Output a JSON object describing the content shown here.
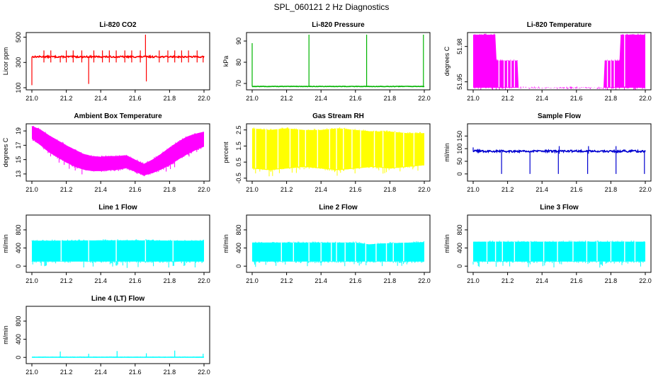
{
  "figure_title": "SPL_060121  2 Hz Diagnostics",
  "chart_data": [
    {
      "type": "line",
      "title": "Li-820 CO2",
      "ylabel": "Licor ppm",
      "xlabel": "",
      "color": "#ff0000",
      "xlim": [
        21.0,
        22.0
      ],
      "ylim": [
        100,
        520
      ],
      "xticks": [
        21.0,
        21.2,
        21.4,
        21.6,
        21.8,
        22.0
      ],
      "xtick_labels": [
        "21.0",
        "21.2",
        "21.4",
        "21.6",
        "21.8",
        "22.0"
      ],
      "yticks": [
        100,
        300,
        500
      ],
      "ytick_labels": [
        "100",
        "300",
        "500"
      ],
      "style": "trace",
      "baseline": 345,
      "noise": 6,
      "spike_high": 395,
      "spike_low": 300,
      "spikes_up": [
        21.07,
        21.11,
        21.2,
        21.24,
        21.29,
        21.36,
        21.41,
        21.45,
        21.49,
        21.54,
        21.58,
        21.63,
        21.74,
        21.79,
        21.83,
        21.87,
        21.91,
        21.96
      ],
      "extremes": [
        {
          "x": 21.0,
          "value": 120
        },
        {
          "x": 21.165,
          "value": 300
        },
        {
          "x": 21.33,
          "value": 130
        },
        {
          "x": 21.66,
          "value": 520
        },
        {
          "x": 21.665,
          "value": 150
        },
        {
          "x": 21.995,
          "value": 300
        }
      ]
    },
    {
      "type": "line",
      "title": "Li-820 Pressure",
      "ylabel": "kPa",
      "xlabel": "",
      "color": "#00b400",
      "xlim": [
        21.0,
        22.0
      ],
      "ylim": [
        68,
        93
      ],
      "xticks": [
        21.0,
        21.2,
        21.4,
        21.6,
        21.8,
        22.0
      ],
      "xtick_labels": [
        "21.0",
        "21.2",
        "21.4",
        "21.6",
        "21.8",
        "22.0"
      ],
      "yticks": [
        70,
        80,
        90
      ],
      "ytick_labels": [
        "70",
        "80",
        "90"
      ],
      "style": "trace",
      "baseline": 68.6,
      "noise": 0.1,
      "spike_high": 69,
      "spike_low": 68.5,
      "spikes_up": [],
      "extremes": [
        {
          "x": 21.0,
          "value": 89
        },
        {
          "x": 21.33,
          "value": 93
        },
        {
          "x": 21.665,
          "value": 93
        },
        {
          "x": 21.995,
          "value": 93
        }
      ]
    },
    {
      "type": "band",
      "title": "Li-820 Temperature",
      "ylabel": "degrees C",
      "xlabel": "",
      "color": "#ff00ff",
      "xlim": [
        21.0,
        22.0
      ],
      "ylim": [
        51.945,
        51.99
      ],
      "xticks": [
        21.0,
        21.2,
        21.4,
        21.6,
        21.8,
        22.0
      ],
      "xtick_labels": [
        "21.0",
        "21.2",
        "21.4",
        "21.6",
        "21.8",
        "22.0"
      ],
      "yticks": [
        51.95,
        51.98
      ],
      "ytick_labels": [
        "51.95",
        "51.98"
      ],
      "x": [
        21.0,
        21.13,
        21.13,
        21.26,
        21.26,
        21.76,
        21.76,
        21.85,
        21.85,
        22.0
      ],
      "low": [
        51.945,
        51.945,
        51.945,
        51.945,
        51.945,
        51.945,
        51.945,
        51.945,
        51.945,
        51.945
      ],
      "high": [
        51.99,
        51.99,
        51.968,
        51.968,
        51.945,
        51.945,
        51.968,
        51.968,
        51.99,
        51.99
      ],
      "bars": [
        21.15,
        21.18,
        21.2,
        21.22,
        21.24,
        21.78,
        21.8,
        21.82,
        21.88
      ]
    },
    {
      "type": "band",
      "title": "Ambient Box Temperature",
      "ylabel": "degrees C",
      "xlabel": "",
      "color": "#ff00ff",
      "xlim": [
        21.0,
        22.0
      ],
      "ylim": [
        12.3,
        19.7
      ],
      "xticks": [
        21.0,
        21.2,
        21.4,
        21.6,
        21.8,
        22.0
      ],
      "xtick_labels": [
        "21.0",
        "21.2",
        "21.4",
        "21.6",
        "21.8",
        "22.0"
      ],
      "yticks": [
        13,
        15,
        17,
        19
      ],
      "ytick_labels": [
        "13",
        "15",
        "17",
        "19"
      ],
      "x": [
        21.0,
        21.05,
        21.1,
        21.15,
        21.2,
        21.25,
        21.3,
        21.35,
        21.4,
        21.45,
        21.5,
        21.55,
        21.6,
        21.65,
        21.7,
        21.75,
        21.8,
        21.85,
        21.9,
        21.95,
        22.0
      ],
      "low": [
        17.9,
        17.0,
        16.0,
        15.3,
        14.6,
        14.0,
        13.6,
        13.4,
        13.4,
        13.5,
        13.6,
        13.8,
        13.3,
        12.8,
        13.1,
        13.6,
        14.2,
        15.0,
        15.7,
        16.3,
        16.8
      ],
      "high": [
        19.7,
        19.2,
        18.4,
        17.7,
        17.0,
        16.4,
        15.8,
        15.5,
        15.4,
        15.5,
        15.5,
        15.6,
        15.0,
        14.4,
        15.0,
        15.8,
        16.7,
        17.5,
        18.2,
        18.6,
        18.9
      ],
      "bars": []
    },
    {
      "type": "band",
      "title": "Gas Stream RH",
      "ylabel": "percent",
      "xlabel": "",
      "color": "#ffff00",
      "xlim": [
        21.0,
        22.0
      ],
      "ylim": [
        -0.55,
        2.75
      ],
      "xticks": [
        21.0,
        21.2,
        21.4,
        21.6,
        21.8,
        22.0
      ],
      "xtick_labels": [
        "21.0",
        "21.2",
        "21.4",
        "21.6",
        "21.8",
        "22.0"
      ],
      "yticks": [
        -0.5,
        0.5,
        1.5,
        2.5
      ],
      "ytick_labels": [
        "-0.5",
        "0.5",
        "1.5",
        "2.5"
      ],
      "x": [
        21.0,
        21.1,
        21.2,
        21.3,
        21.4,
        21.5,
        21.6,
        21.7,
        21.8,
        21.9,
        22.0
      ],
      "low": [
        0.1,
        0.0,
        0.1,
        0.2,
        0.1,
        0.0,
        0.1,
        0.2,
        0.1,
        0.2,
        0.3
      ],
      "high": [
        2.6,
        2.5,
        2.6,
        2.5,
        2.5,
        2.6,
        2.5,
        2.4,
        2.4,
        2.3,
        2.3
      ],
      "bars": [
        21.02,
        21.08,
        21.15,
        21.22,
        21.27,
        21.31,
        21.38,
        21.45,
        21.49,
        21.53,
        21.58,
        21.63,
        21.71,
        21.76,
        21.83,
        21.88,
        21.94
      ]
    },
    {
      "type": "line",
      "title": "Sample Flow",
      "ylabel": "ml/min",
      "xlabel": "",
      "color": "#0000d0",
      "xlim": [
        21.0,
        22.0
      ],
      "ylim": [
        -20,
        190
      ],
      "xticks": [
        21.0,
        21.2,
        21.4,
        21.6,
        21.8,
        22.0
      ],
      "xtick_labels": [
        "21.0",
        "21.2",
        "21.4",
        "21.6",
        "21.8",
        "22.0"
      ],
      "yticks": [
        0,
        50,
        100,
        150
      ],
      "ytick_labels": [
        "0",
        "50",
        "100",
        "150"
      ],
      "style": "trace",
      "baseline": 90,
      "noise": 4,
      "spike_high": 110,
      "spike_low": 80,
      "spikes_up": [
        21.5,
        21.67,
        21.83
      ],
      "extremes": [
        {
          "x": 21.0,
          "value": 105
        },
        {
          "x": 21.165,
          "value": 0
        },
        {
          "x": 21.33,
          "value": 0
        },
        {
          "x": 21.495,
          "value": 0
        },
        {
          "x": 21.665,
          "value": 0
        },
        {
          "x": 21.83,
          "value": 0
        },
        {
          "x": 21.995,
          "value": 0
        }
      ]
    },
    {
      "type": "band",
      "title": "Line 1 Flow",
      "ylabel": "ml/min",
      "xlabel": "",
      "color": "#00ffff",
      "xlim": [
        21.0,
        22.0
      ],
      "ylim": [
        -90,
        1080
      ],
      "xticks": [
        21.0,
        21.2,
        21.4,
        21.6,
        21.8,
        22.0
      ],
      "xtick_labels": [
        "21.0",
        "21.2",
        "21.4",
        "21.6",
        "21.8",
        "22.0"
      ],
      "yticks": [
        0,
        400,
        800
      ],
      "ytick_labels": [
        "0",
        "400",
        "800"
      ],
      "x": [
        21.0,
        21.5,
        22.0
      ],
      "low": [
        100,
        100,
        100
      ],
      "high": [
        560,
        570,
        560
      ],
      "bars": [
        21.17,
        21.33,
        21.49,
        21.66,
        21.82
      ]
    },
    {
      "type": "band",
      "title": "Line 2 Flow",
      "ylabel": "ml/min",
      "xlabel": "",
      "color": "#00ffff",
      "xlim": [
        21.0,
        22.0
      ],
      "ylim": [
        -90,
        1080
      ],
      "xticks": [
        21.0,
        21.2,
        21.4,
        21.6,
        21.8,
        22.0
      ],
      "xtick_labels": [
        "21.0",
        "21.2",
        "21.4",
        "21.6",
        "21.8",
        "22.0"
      ],
      "yticks": [
        0,
        400,
        800
      ],
      "ytick_labels": [
        "0",
        "400",
        "800"
      ],
      "x": [
        21.0,
        21.6,
        21.68,
        21.75,
        22.0
      ],
      "low": [
        100,
        100,
        100,
        100,
        100
      ],
      "high": [
        520,
        520,
        480,
        500,
        530
      ],
      "bars": [
        21.17,
        21.24,
        21.33,
        21.4,
        21.46,
        21.49,
        21.54,
        21.6,
        21.66,
        21.72,
        21.78,
        21.82,
        21.88
      ]
    },
    {
      "type": "band",
      "title": "Line 3 Flow",
      "ylabel": "ml/min",
      "xlabel": "",
      "color": "#00ffff",
      "xlim": [
        21.0,
        22.0
      ],
      "ylim": [
        -90,
        1080
      ],
      "xticks": [
        21.0,
        21.2,
        21.4,
        21.6,
        21.8,
        22.0
      ],
      "xtick_labels": [
        "21.0",
        "21.2",
        "21.4",
        "21.6",
        "21.8",
        "22.0"
      ],
      "yticks": [
        0,
        400,
        800
      ],
      "ytick_labels": [
        "0",
        "400",
        "800"
      ],
      "x": [
        21.0,
        21.5,
        22.0
      ],
      "low": [
        100,
        100,
        100
      ],
      "high": [
        540,
        540,
        540
      ],
      "bars": [
        21.08,
        21.13,
        21.17,
        21.24,
        21.33,
        21.41,
        21.49,
        21.58,
        21.66,
        21.72,
        21.8,
        21.88,
        21.94
      ]
    },
    {
      "type": "line",
      "title": "Line 4 (LT) Flow",
      "ylabel": "ml/min",
      "xlabel": "",
      "color": "#00ffff",
      "xlim": [
        21.0,
        22.0
      ],
      "ylim": [
        -90,
        1080
      ],
      "xticks": [
        21.0,
        21.2,
        21.4,
        21.6,
        21.8,
        22.0
      ],
      "xtick_labels": [
        "21.0",
        "21.2",
        "21.4",
        "21.6",
        "21.8",
        "22.0"
      ],
      "yticks": [
        0,
        400,
        800
      ],
      "ytick_labels": [
        "0",
        "400",
        "800"
      ],
      "style": "trace",
      "baseline": 5,
      "noise": 2,
      "spike_high": 8,
      "spike_low": 0,
      "spikes_up": [],
      "extremes": [
        {
          "x": 21.165,
          "value": 130
        },
        {
          "x": 21.33,
          "value": 80
        },
        {
          "x": 21.495,
          "value": 140
        },
        {
          "x": 21.665,
          "value": 90
        },
        {
          "x": 21.83,
          "value": 150
        },
        {
          "x": 21.995,
          "value": 80
        }
      ]
    }
  ]
}
